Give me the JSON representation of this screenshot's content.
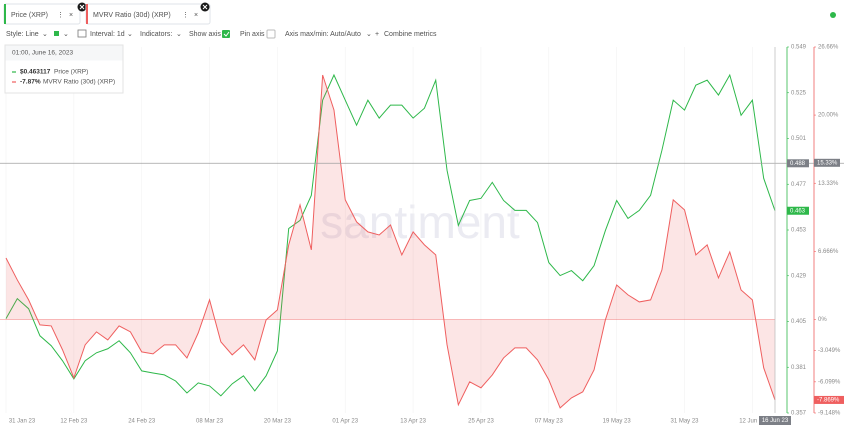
{
  "ui": {
    "tabs": [
      "Price (XRP)",
      "MVRV Ratio (30d) (XRP)"
    ],
    "toolbar": {
      "style": "Style: Line",
      "interval": "Interval: 1d",
      "indicators": "Indicators:",
      "show_axis": "Show axis",
      "pin_axis": "Pin axis",
      "axis_minmax": "Axis max/min: Auto/Auto",
      "combine": "Combine metrics"
    },
    "tooltip": {
      "title": "01:00, June 16, 2023",
      "items": [
        {
          "value": "$0.463117",
          "label": "Price (XRP)"
        },
        {
          "value": "-7.87%",
          "label": "MVRV Ratio (30d) (XRP)"
        }
      ]
    },
    "watermark": "santiment"
  },
  "chart_data": {
    "type": "line",
    "x": [
      "2023-01-31",
      "2023-02-02",
      "2023-02-04",
      "2023-02-06",
      "2023-02-08",
      "2023-02-10",
      "2023-02-12",
      "2023-02-14",
      "2023-02-16",
      "2023-02-18",
      "2023-02-20",
      "2023-02-22",
      "2023-02-24",
      "2023-02-26",
      "2023-02-28",
      "2023-03-02",
      "2023-03-04",
      "2023-03-06",
      "2023-03-08",
      "2023-03-10",
      "2023-03-12",
      "2023-03-14",
      "2023-03-16",
      "2023-03-18",
      "2023-03-20",
      "2023-03-22",
      "2023-03-24",
      "2023-03-26",
      "2023-03-28",
      "2023-03-30",
      "2023-04-01",
      "2023-04-03",
      "2023-04-05",
      "2023-04-07",
      "2023-04-09",
      "2023-04-11",
      "2023-04-13",
      "2023-04-15",
      "2023-04-17",
      "2023-04-19",
      "2023-04-21",
      "2023-04-23",
      "2023-04-25",
      "2023-04-27",
      "2023-04-29",
      "2023-05-01",
      "2023-05-03",
      "2023-05-05",
      "2023-05-07",
      "2023-05-09",
      "2023-05-11",
      "2023-05-13",
      "2023-05-15",
      "2023-05-17",
      "2023-05-19",
      "2023-05-21",
      "2023-05-23",
      "2023-05-25",
      "2023-05-27",
      "2023-05-29",
      "2023-05-31",
      "2023-06-02",
      "2023-06-04",
      "2023-06-06",
      "2023-06-08",
      "2023-06-10",
      "2023-06-12",
      "2023-06-14",
      "2023-06-16"
    ],
    "xlim": [
      "2023-01-31",
      "2023-06-16"
    ],
    "xticks": [
      {
        "value": "2023-01-31",
        "label": "31 Jan 23"
      },
      {
        "value": "2023-02-12",
        "label": "12 Feb 23"
      },
      {
        "value": "2023-02-24",
        "label": "24 Feb 23"
      },
      {
        "value": "2023-03-08",
        "label": "08 Mar 23"
      },
      {
        "value": "2023-03-20",
        "label": "20 Mar 23"
      },
      {
        "value": "2023-04-01",
        "label": "01 Apr 23"
      },
      {
        "value": "2023-04-13",
        "label": "13 Apr 23"
      },
      {
        "value": "2023-04-25",
        "label": "25 Apr 23"
      },
      {
        "value": "2023-05-07",
        "label": "07 May 23"
      },
      {
        "value": "2023-05-19",
        "label": "19 May 23"
      },
      {
        "value": "2023-05-31",
        "label": "31 May 23"
      },
      {
        "value": "2023-06-12",
        "label": "12 Jun 23"
      }
    ],
    "ylim": [
      0.357,
      0.549
    ],
    "yticks": [
      0.357,
      0.381,
      0.405,
      0.429,
      0.453,
      0.477,
      0.501,
      0.525,
      0.549
    ],
    "y2lim": [
      -9.148,
      26.66
    ],
    "y2ticks": [
      {
        "value": -9.148,
        "label": "-9.148%"
      },
      {
        "value": -6.099,
        "label": "-6.099%"
      },
      {
        "value": -3.049,
        "label": "-3.049%"
      },
      {
        "value": 0,
        "label": "0%"
      },
      {
        "value": 6.666,
        "label": "6.666%"
      },
      {
        "value": 13.33,
        "label": "13.33%"
      },
      {
        "value": 20.0,
        "label": "20.00%"
      },
      {
        "value": 26.66,
        "label": "26.66%"
      }
    ],
    "grid": true,
    "series": [
      {
        "name": "Price (XRP)",
        "color": "#2eb84a",
        "badge": "0.463",
        "values": [
          0.4065,
          0.417,
          0.4117,
          0.3975,
          0.3923,
          0.3844,
          0.3749,
          0.3844,
          0.3886,
          0.3907,
          0.3949,
          0.3886,
          0.3791,
          0.378,
          0.377,
          0.3738,
          0.3675,
          0.3728,
          0.3712,
          0.366,
          0.3723,
          0.3765,
          0.3686,
          0.3765,
          0.3896,
          0.4538,
          0.458,
          0.4712,
          0.5211,
          0.5343,
          0.5211,
          0.508,
          0.5211,
          0.5117,
          0.5185,
          0.5185,
          0.5117,
          0.5169,
          0.5316,
          0.4843,
          0.4554,
          0.4685,
          0.4696,
          0.478,
          0.4685,
          0.4633,
          0.4633,
          0.4569,
          0.4359,
          0.4291,
          0.4317,
          0.4264,
          0.4343,
          0.4527,
          0.4685,
          0.4591,
          0.4633,
          0.4712,
          0.4948,
          0.5211,
          0.5159,
          0.529,
          0.5316,
          0.5238,
          0.5343,
          0.5132,
          0.5211,
          0.4801,
          0.4631
        ]
      },
      {
        "name": "MVRV Ratio (30d) (XRP)",
        "color": "#ef5f5f",
        "axis": "y2",
        "area": true,
        "badge": "-7.869%",
        "values": [
          6.02,
          3.87,
          1.92,
          -0.53,
          -0.63,
          -2.97,
          -5.71,
          -2.48,
          -1.21,
          -2.0,
          -0.63,
          -1.21,
          -3.17,
          -3.36,
          -2.48,
          -2.48,
          -3.76,
          -1.31,
          1.92,
          -2.19,
          -3.46,
          -2.48,
          -3.95,
          -0.04,
          0.94,
          7.3,
          11.21,
          6.81,
          23.92,
          20.5,
          11.7,
          9.55,
          8.57,
          8.27,
          9.25,
          6.32,
          8.57,
          7.3,
          6.32,
          -2.48,
          -8.35,
          -6.1,
          -6.69,
          -5.42,
          -3.76,
          -2.78,
          -2.78,
          -3.95,
          -5.91,
          -8.65,
          -7.67,
          -7.08,
          -4.93,
          -0.04,
          3.38,
          2.41,
          1.72,
          1.92,
          4.85,
          11.7,
          10.72,
          6.32,
          7.3,
          4.07,
          6.61,
          2.89,
          1.92,
          -4.73,
          -7.87
        ]
      }
    ],
    "crosshair": {
      "value": 0.488,
      "y2": {
        "value": 15.33,
        "label": "15.33%"
      },
      "date": {
        "value": "2023-06-16",
        "label": "16 Jun 23"
      }
    }
  }
}
